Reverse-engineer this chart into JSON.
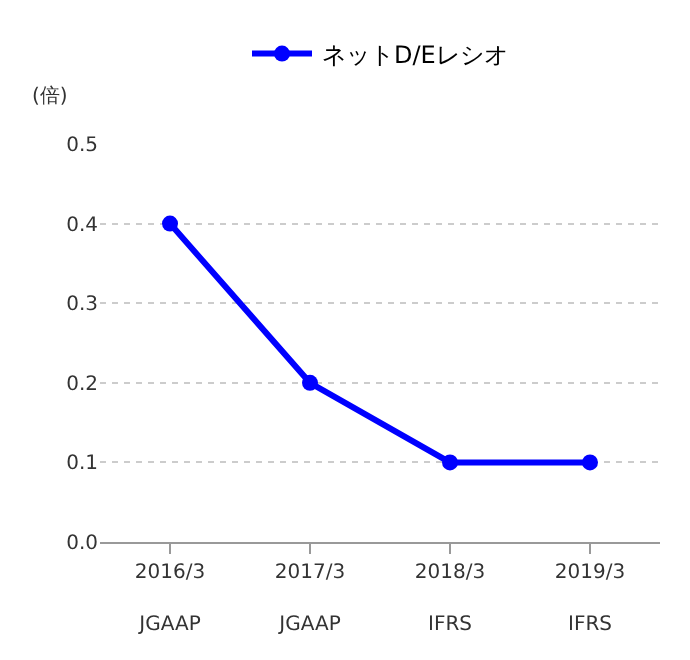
{
  "chart_data": {
    "type": "line",
    "categories": [
      "2016/3\nJGAAP",
      "2017/3\nJGAAP",
      "2018/3\nIFRS",
      "2019/3\nIFRS"
    ],
    "series": [
      {
        "name": "ネットD/Eレシオ",
        "color": "#0000ff",
        "values": [
          0.4,
          0.2,
          0.1,
          0.1
        ]
      }
    ],
    "ylabel": "(倍)",
    "ylim": [
      0,
      0.5
    ],
    "yticks": [
      {
        "value": 0,
        "label": "0.0"
      },
      0.1,
      0.2,
      0.3,
      0.4,
      0.5
    ],
    "grid": "y",
    "legend": "top",
    "marker": "circle",
    "line_style": "solid"
  }
}
